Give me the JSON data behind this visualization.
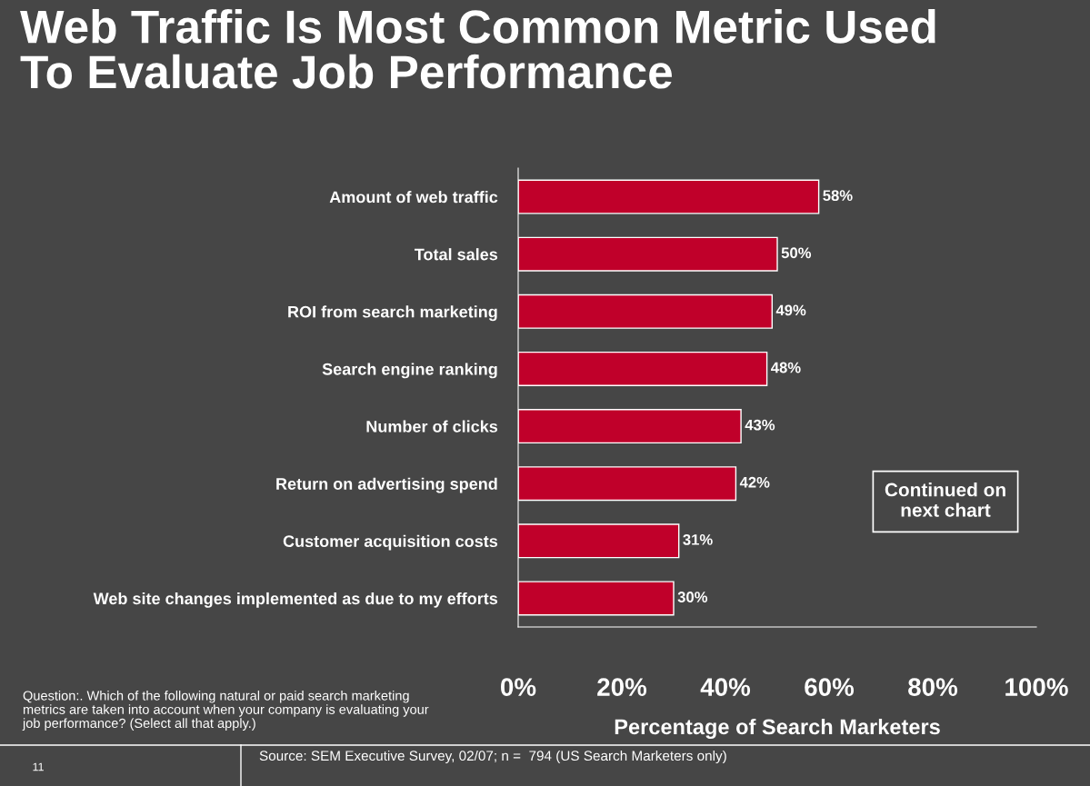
{
  "chart_data": {
    "type": "bar",
    "orientation": "horizontal",
    "title": "Web Traffic Is Most Common Metric Used\nTo Evaluate Job Performance",
    "categories": [
      "Amount of web traffic",
      "Total sales",
      "ROI from search marketing",
      "Search engine ranking",
      "Number of clicks",
      "Return on advertising spend",
      "Customer acquisition costs",
      "Web site changes implemented as due to my efforts"
    ],
    "values": [
      58,
      50,
      49,
      48,
      43,
      42,
      31,
      30
    ],
    "value_labels": [
      "58%",
      "50%",
      "49%",
      "48%",
      "43%",
      "42%",
      "31%",
      "30%"
    ],
    "color": "#c0002a",
    "xlim": [
      0,
      100
    ],
    "xticks": [
      {
        "value": 0,
        "label": "0%"
      },
      {
        "value": 20,
        "label": "20%"
      },
      {
        "value": 40,
        "label": "40%"
      },
      {
        "value": 60,
        "label": "60%"
      },
      {
        "value": 80,
        "label": "80%"
      },
      {
        "value": 100,
        "label": "100%"
      }
    ],
    "xlabel": "Percentage of Search Marketers",
    "grid": false,
    "legend": false,
    "annotations": [
      "Continued on\nnext chart",
      "Question:. Which of the following natural or paid search marketing\nmetrics are taken into account when your company is evaluating your\njob performance? (Select all that apply.)",
      "11",
      "Source: SEM Executive Survey, 02/07; n =  794 (US Search Marketers only)"
    ]
  }
}
